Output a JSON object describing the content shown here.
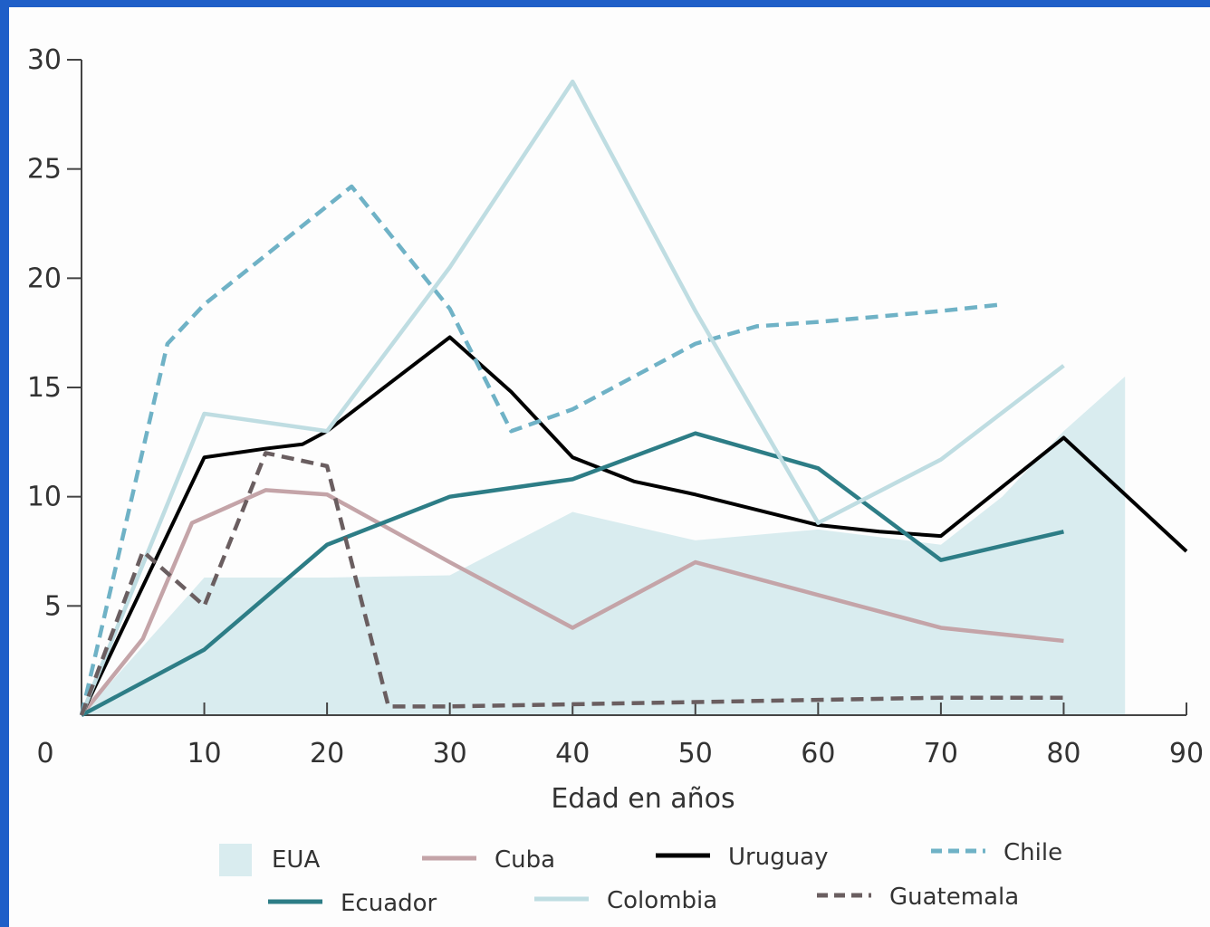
{
  "chart_data": {
    "type": "line",
    "xlabel": "Edad en años",
    "ylabel": "",
    "xlim": [
      0,
      90
    ],
    "ylim": [
      0,
      30
    ],
    "x_ticks": [
      "0",
      "10",
      "20",
      "30",
      "40",
      "50",
      "60",
      "70",
      "80",
      "90"
    ],
    "y_ticks": [
      "5",
      "10",
      "15",
      "20",
      "25",
      "30"
    ],
    "grid": false,
    "legend_position": "bottom",
    "series": [
      {
        "name": "EUA",
        "style": "area",
        "color": "#d9ecef",
        "points": [
          [
            0,
            0
          ],
          [
            10,
            6.3
          ],
          [
            20,
            6.3
          ],
          [
            30,
            6.4
          ],
          [
            40,
            9.3
          ],
          [
            50,
            8
          ],
          [
            60,
            8.5
          ],
          [
            70,
            7.8
          ],
          [
            75,
            10
          ],
          [
            80,
            13
          ],
          [
            85,
            15.5
          ],
          [
            85,
            0
          ]
        ]
      },
      {
        "name": "Cuba",
        "style": "solid",
        "color": "#c4a4a8",
        "points": [
          [
            0,
            0
          ],
          [
            5,
            3.5
          ],
          [
            9,
            8.8
          ],
          [
            15,
            10.3
          ],
          [
            20,
            10.1
          ],
          [
            30,
            7
          ],
          [
            40,
            4
          ],
          [
            50,
            7
          ],
          [
            60,
            5.5
          ],
          [
            70,
            4
          ],
          [
            80,
            3.4
          ]
        ]
      },
      {
        "name": "Uruguay",
        "style": "solid",
        "color": "#000000",
        "points": [
          [
            0,
            0
          ],
          [
            10,
            11.8
          ],
          [
            15,
            12.2
          ],
          [
            18,
            12.4
          ],
          [
            20,
            13
          ],
          [
            30,
            17.3
          ],
          [
            35,
            14.8
          ],
          [
            40,
            11.8
          ],
          [
            45,
            10.7
          ],
          [
            50,
            10.1
          ],
          [
            60,
            8.7
          ],
          [
            65,
            8.4
          ],
          [
            70,
            8.2
          ],
          [
            80,
            12.7
          ],
          [
            90,
            7.5
          ]
        ]
      },
      {
        "name": "Chile",
        "style": "dashed",
        "color": "#6fb2c6",
        "points": [
          [
            0,
            0
          ],
          [
            7,
            17
          ],
          [
            10,
            18.8
          ],
          [
            22,
            24.2
          ],
          [
            30,
            18.6
          ],
          [
            35,
            13
          ],
          [
            40,
            14
          ],
          [
            50,
            17
          ],
          [
            55,
            17.8
          ],
          [
            60,
            18
          ],
          [
            70,
            18.5
          ],
          [
            75,
            18.8
          ]
        ]
      },
      {
        "name": "Ecuador",
        "style": "solid",
        "color": "#2d7d86",
        "points": [
          [
            0,
            0
          ],
          [
            10,
            3
          ],
          [
            20,
            7.8
          ],
          [
            30,
            10
          ],
          [
            40,
            10.8
          ],
          [
            50,
            12.9
          ],
          [
            60,
            11.3
          ],
          [
            70,
            7.1
          ],
          [
            80,
            8.4
          ]
        ]
      },
      {
        "name": "Colombia",
        "style": "solid",
        "color": "#bfdde2",
        "points": [
          [
            0,
            0
          ],
          [
            10,
            13.8
          ],
          [
            20,
            13
          ],
          [
            30,
            20.5
          ],
          [
            40,
            29
          ],
          [
            50,
            18.5
          ],
          [
            60,
            8.8
          ],
          [
            70,
            11.7
          ],
          [
            80,
            16
          ]
        ]
      },
      {
        "name": "Guatemala",
        "style": "dashed",
        "color": "#6a5e60",
        "points": [
          [
            0,
            0
          ],
          [
            5,
            7.5
          ],
          [
            10,
            5
          ],
          [
            15,
            12
          ],
          [
            20,
            11.4
          ],
          [
            25,
            0.4
          ],
          [
            30,
            0.4
          ],
          [
            40,
            0.5
          ],
          [
            50,
            0.6
          ],
          [
            60,
            0.7
          ],
          [
            70,
            0.8
          ],
          [
            80,
            0.8
          ]
        ]
      }
    ]
  }
}
